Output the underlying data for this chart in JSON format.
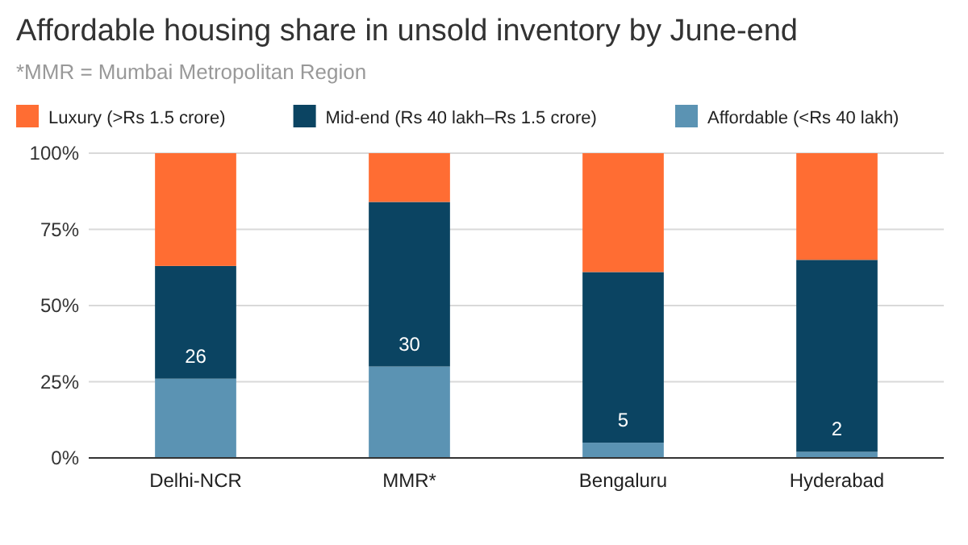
{
  "chart_data": {
    "type": "bar",
    "title": "Affordable housing share in unsold inventory by June-end",
    "subtitle": "*MMR = Mumbai Metropolitan Region",
    "categories": [
      "Delhi-NCR",
      "MMR*",
      "Bengaluru",
      "Hyderabad"
    ],
    "stacked": true,
    "series": [
      {
        "name": "Affordable (<Rs 40 lakh)",
        "color": "#5b93b3",
        "values": [
          26,
          30,
          5,
          2
        ],
        "value_labels": [
          "26",
          "30",
          "5",
          "2"
        ]
      },
      {
        "name": "Mid-end (Rs 40 lakh–Rs 1.5 crore)",
        "color": "#0b4462",
        "values": [
          37,
          54,
          56,
          63
        ]
      },
      {
        "name": "Luxury (>Rs 1.5 crore)",
        "color": "#ff6d33",
        "values": [
          37,
          16,
          39,
          35
        ]
      }
    ],
    "ylim": [
      0,
      100
    ],
    "yticks": [
      {
        "value": 0,
        "label": "0%"
      },
      {
        "value": 25,
        "label": "25%"
      },
      {
        "value": 50,
        "label": "50%"
      },
      {
        "value": 75,
        "label": "75%"
      },
      {
        "value": 100,
        "label": "100%"
      }
    ],
    "grid": "y",
    "legend": "top"
  }
}
